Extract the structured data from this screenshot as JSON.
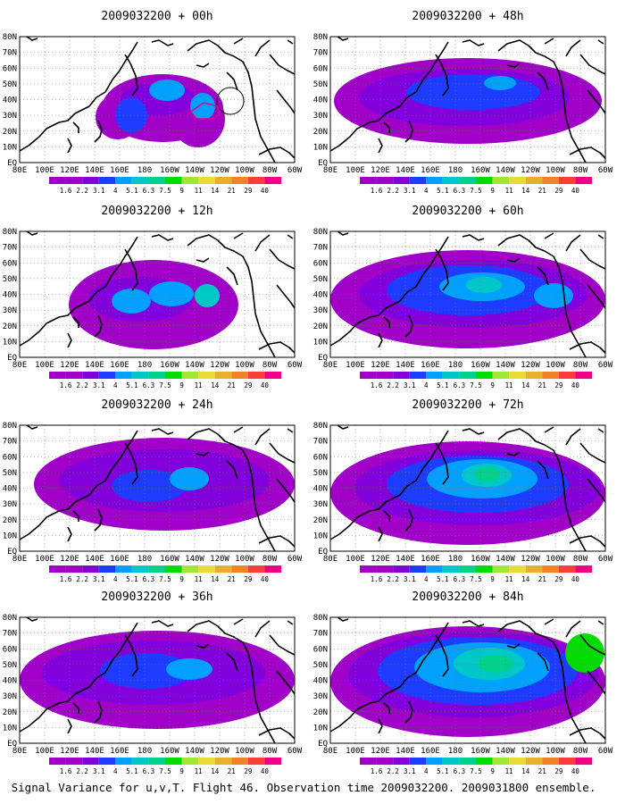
{
  "figure": {
    "caption": "Signal Variance for u,v,T. Flight 46. Observation time 2009032200. 2009031800 ensemble."
  },
  "map": {
    "lon_labels": [
      "80E",
      "100E",
      "120E",
      "140E",
      "160E",
      "180",
      "160W",
      "140W",
      "120W",
      "100W",
      "80W",
      "60W"
    ],
    "lat_labels": [
      "EQ",
      "10N",
      "20N",
      "30N",
      "40N",
      "50N",
      "60N",
      "70N",
      "80N"
    ],
    "lon_range": [
      "80E",
      "60W"
    ],
    "lat_range": [
      "EQ",
      "80N"
    ]
  },
  "colorbar": {
    "labels": [
      "1.6",
      "2.2",
      "3.1",
      "4",
      "5.1",
      "6.3",
      "7.5",
      "9",
      "11",
      "14",
      "21",
      "29",
      "40"
    ],
    "colors": [
      "#a000c8",
      "#8200dc",
      "#1e3cff",
      "#00a0ff",
      "#00c8c8",
      "#00d28c",
      "#00dc00",
      "#a0e632",
      "#e6dc32",
      "#e6af2d",
      "#f08228",
      "#fa3c3c",
      "#f00082"
    ]
  },
  "panels": [
    {
      "title": "2009032200 + 00h"
    },
    {
      "title": "2009032200 + 48h"
    },
    {
      "title": "2009032200 + 12h"
    },
    {
      "title": "2009032200 + 60h"
    },
    {
      "title": "2009032200 + 24h"
    },
    {
      "title": "2009032200 + 72h"
    },
    {
      "title": "2009032200 + 36h"
    },
    {
      "title": "2009032200 + 84h"
    }
  ]
}
